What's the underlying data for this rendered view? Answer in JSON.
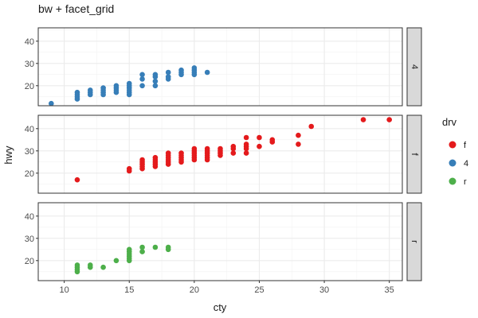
{
  "chart_data": {
    "type": "scatter",
    "title": "bw + facet_grid",
    "xlabel": "cty",
    "ylabel": "hwy",
    "xlim": [
      8,
      36
    ],
    "ylim": [
      11,
      46
    ],
    "x_ticks": [
      10,
      15,
      20,
      25,
      30,
      35
    ],
    "y_ticks": [
      20,
      30,
      40
    ],
    "grid": true,
    "legend": {
      "title": "drv",
      "position": "right",
      "entries": [
        {
          "label": "f",
          "color": "#e41a1c"
        },
        {
          "label": "4",
          "color": "#377eb8"
        },
        {
          "label": "r",
          "color": "#4daf4a"
        }
      ]
    },
    "facets": [
      {
        "strip": "4",
        "color": "#377eb8",
        "points": [
          [
            9,
            12
          ],
          [
            11,
            14
          ],
          [
            11,
            15
          ],
          [
            11,
            16
          ],
          [
            11,
            17
          ],
          [
            12,
            16
          ],
          [
            12,
            17
          ],
          [
            12,
            18
          ],
          [
            13,
            16
          ],
          [
            13,
            17
          ],
          [
            13,
            18
          ],
          [
            13,
            19
          ],
          [
            14,
            17
          ],
          [
            14,
            18
          ],
          [
            14,
            19
          ],
          [
            14,
            20
          ],
          [
            15,
            16
          ],
          [
            15,
            17
          ],
          [
            15,
            18
          ],
          [
            15,
            19
          ],
          [
            15,
            20
          ],
          [
            15,
            21
          ],
          [
            16,
            20
          ],
          [
            16,
            23
          ],
          [
            16,
            25
          ],
          [
            17,
            20
          ],
          [
            17,
            22
          ],
          [
            17,
            24
          ],
          [
            17,
            25
          ],
          [
            18,
            23
          ],
          [
            18,
            24
          ],
          [
            18,
            26
          ],
          [
            19,
            25
          ],
          [
            19,
            26
          ],
          [
            19,
            27
          ],
          [
            20,
            25
          ],
          [
            20,
            26
          ],
          [
            20,
            27
          ],
          [
            20,
            28
          ],
          [
            21,
            26
          ]
        ]
      },
      {
        "strip": "f",
        "color": "#e41a1c",
        "points": [
          [
            11,
            17
          ],
          [
            15,
            21
          ],
          [
            15,
            22
          ],
          [
            16,
            22
          ],
          [
            16,
            23
          ],
          [
            16,
            24
          ],
          [
            16,
            25
          ],
          [
            16,
            26
          ],
          [
            17,
            23
          ],
          [
            17,
            24
          ],
          [
            17,
            25
          ],
          [
            17,
            26
          ],
          [
            17,
            27
          ],
          [
            18,
            24
          ],
          [
            18,
            25
          ],
          [
            18,
            26
          ],
          [
            18,
            27
          ],
          [
            18,
            28
          ],
          [
            18,
            29
          ],
          [
            19,
            25
          ],
          [
            19,
            26
          ],
          [
            19,
            27
          ],
          [
            19,
            28
          ],
          [
            19,
            29
          ],
          [
            20,
            26
          ],
          [
            20,
            27
          ],
          [
            20,
            28
          ],
          [
            20,
            29
          ],
          [
            20,
            30
          ],
          [
            20,
            31
          ],
          [
            21,
            26
          ],
          [
            21,
            27
          ],
          [
            21,
            28
          ],
          [
            21,
            29
          ],
          [
            21,
            30
          ],
          [
            21,
            31
          ],
          [
            22,
            28
          ],
          [
            22,
            29
          ],
          [
            22,
            30
          ],
          [
            22,
            31
          ],
          [
            23,
            29
          ],
          [
            23,
            31
          ],
          [
            23,
            32
          ],
          [
            24,
            29
          ],
          [
            24,
            31
          ],
          [
            24,
            32
          ],
          [
            24,
            33
          ],
          [
            24,
            36
          ],
          [
            25,
            32
          ],
          [
            25,
            36
          ],
          [
            26,
            34
          ],
          [
            26,
            35
          ],
          [
            28,
            33
          ],
          [
            28,
            37
          ],
          [
            29,
            41
          ],
          [
            33,
            44
          ],
          [
            35,
            44
          ]
        ]
      },
      {
        "strip": "r",
        "color": "#4daf4a",
        "points": [
          [
            11,
            15
          ],
          [
            11,
            16
          ],
          [
            11,
            17
          ],
          [
            11,
            18
          ],
          [
            12,
            17
          ],
          [
            12,
            18
          ],
          [
            13,
            17
          ],
          [
            14,
            20
          ],
          [
            15,
            20
          ],
          [
            15,
            21
          ],
          [
            15,
            22
          ],
          [
            15,
            23
          ],
          [
            15,
            24
          ],
          [
            15,
            25
          ],
          [
            16,
            24
          ],
          [
            16,
            26
          ],
          [
            17,
            26
          ],
          [
            18,
            25
          ],
          [
            18,
            26
          ]
        ]
      }
    ]
  }
}
